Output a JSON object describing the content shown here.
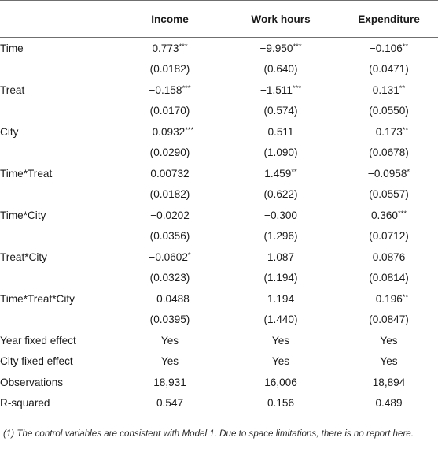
{
  "header": {
    "stub": "",
    "col1": "Income",
    "col2": "Work hours",
    "col3": "Expenditure"
  },
  "rows": [
    {
      "label": "Time",
      "c1": "0.773",
      "c1s": "***",
      "c2": "−9.950",
      "c2s": "***",
      "c3": "−0.106",
      "c3s": "**"
    },
    {
      "label": "",
      "c1": "(0.0182)",
      "c1s": "",
      "c2": "(0.640)",
      "c2s": "",
      "c3": "(0.0471)",
      "c3s": ""
    },
    {
      "label": "Treat",
      "c1": "−0.158",
      "c1s": "***",
      "c2": "−1.511",
      "c2s": "***",
      "c3": "0.131",
      "c3s": "**"
    },
    {
      "label": "",
      "c1": "(0.0170)",
      "c1s": "",
      "c2": "(0.574)",
      "c2s": "",
      "c3": "(0.0550)",
      "c3s": ""
    },
    {
      "label": "City",
      "c1": "−0.0932",
      "c1s": "***",
      "c2": "0.511",
      "c2s": "",
      "c3": "−0.173",
      "c3s": "**"
    },
    {
      "label": "",
      "c1": "(0.0290)",
      "c1s": "",
      "c2": "(1.090)",
      "c2s": "",
      "c3": "(0.0678)",
      "c3s": ""
    },
    {
      "label": "Time*Treat",
      "c1": "0.00732",
      "c1s": "",
      "c2": "1.459",
      "c2s": "**",
      "c3": "−0.0958",
      "c3s": "*"
    },
    {
      "label": "",
      "c1": "(0.0182)",
      "c1s": "",
      "c2": "(0.622)",
      "c2s": "",
      "c3": "(0.0557)",
      "c3s": ""
    },
    {
      "label": "Time*City",
      "c1": "−0.0202",
      "c1s": "",
      "c2": "−0.300",
      "c2s": "",
      "c3": "0.360",
      "c3s": "***"
    },
    {
      "label": "",
      "c1": "(0.0356)",
      "c1s": "",
      "c2": "(1.296)",
      "c2s": "",
      "c3": "(0.0712)",
      "c3s": ""
    },
    {
      "label": "Treat*City",
      "c1": "−0.0602",
      "c1s": "*",
      "c2": "1.087",
      "c2s": "",
      "c3": "0.0876",
      "c3s": ""
    },
    {
      "label": "",
      "c1": "(0.0323)",
      "c1s": "",
      "c2": "(1.194)",
      "c2s": "",
      "c3": "(0.0814)",
      "c3s": ""
    },
    {
      "label": "Time*Treat*City",
      "c1": "−0.0488",
      "c1s": "",
      "c2": "1.194",
      "c2s": "",
      "c3": "−0.196",
      "c3s": "**"
    },
    {
      "label": "",
      "c1": "(0.0395)",
      "c1s": "",
      "c2": "(1.440)",
      "c2s": "",
      "c3": "(0.0847)",
      "c3s": ""
    },
    {
      "label": "Year fixed effect",
      "c1": "Yes",
      "c1s": "",
      "c2": "Yes",
      "c2s": "",
      "c3": "Yes",
      "c3s": ""
    },
    {
      "label": "City fixed effect",
      "c1": "Yes",
      "c1s": "",
      "c2": "Yes",
      "c2s": "",
      "c3": "Yes",
      "c3s": ""
    },
    {
      "label": "Observations",
      "c1": "18,931",
      "c1s": "",
      "c2": "16,006",
      "c2s": "",
      "c3": "18,894",
      "c3s": ""
    },
    {
      "label": "R-squared",
      "c1": "0.547",
      "c1s": "",
      "c2": "0.156",
      "c2s": "",
      "c3": "0.489",
      "c3s": ""
    }
  ],
  "note": "(1) The control variables are consistent with Model 1. Due to space limitations, there is no report here."
}
